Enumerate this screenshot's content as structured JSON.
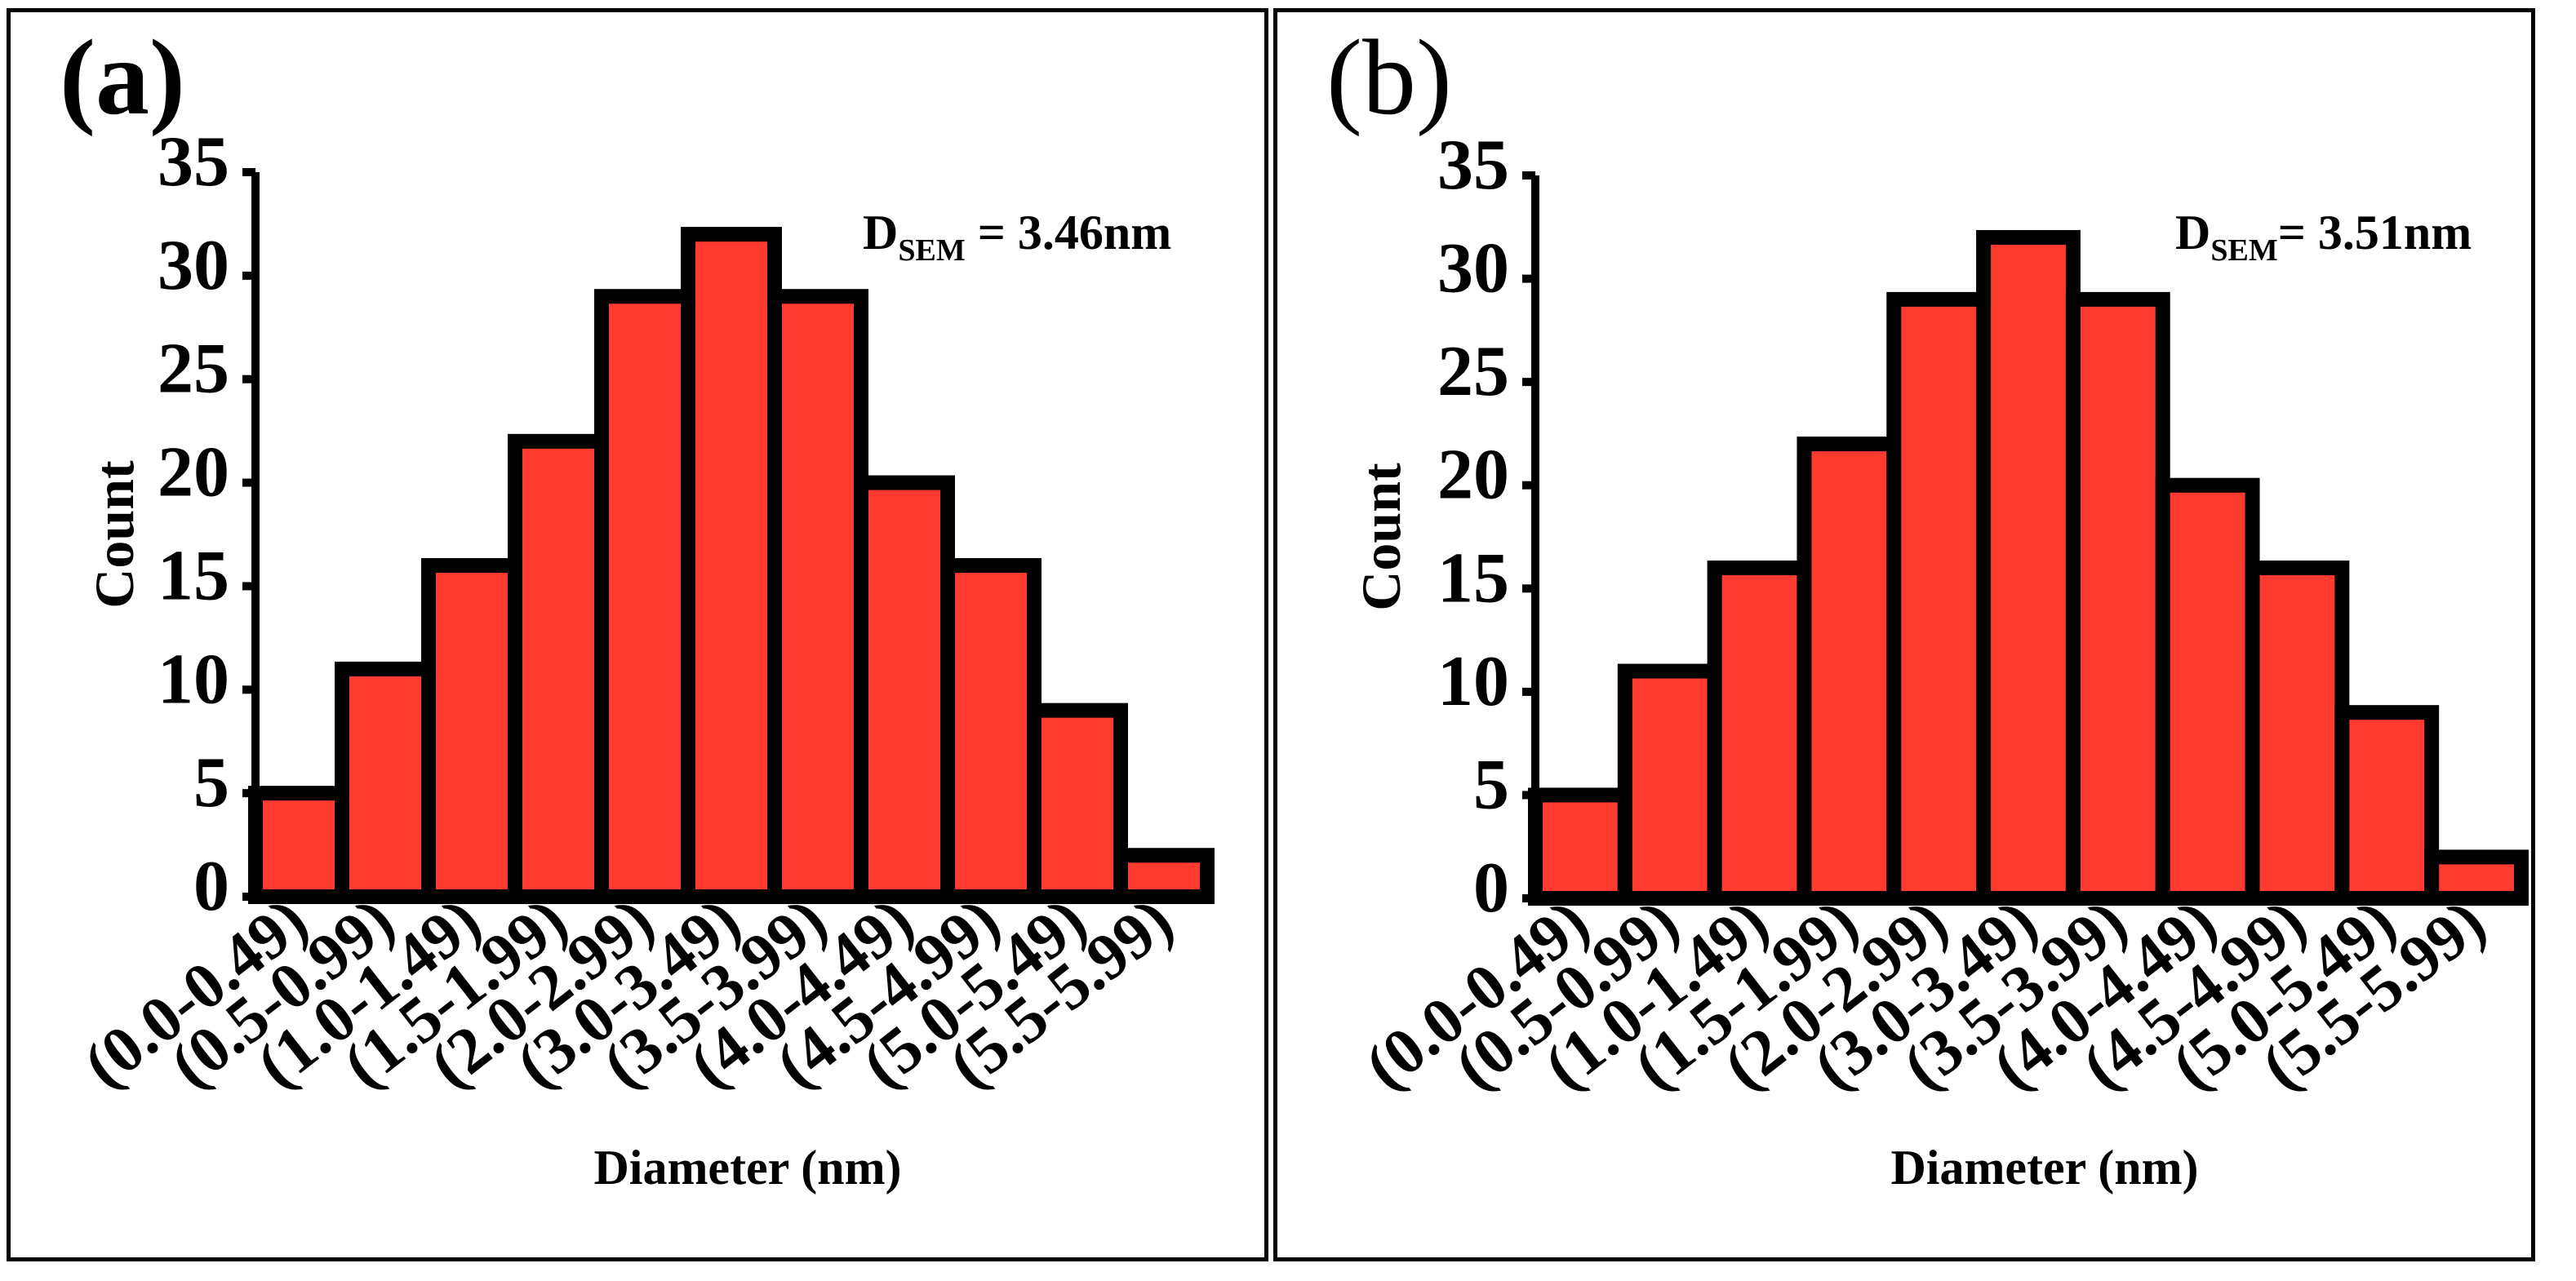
{
  "chart_data": [
    {
      "type": "bar",
      "panel_label": "(a)",
      "annotation": {
        "main": "D",
        "subscript": "SEM",
        "rest": " = 3.46nm"
      },
      "categories": [
        "(0.0-0.49)",
        "(0.5-0.99)",
        "(1.0-1.49)",
        "(1.5-1.99)",
        "(2.0-2.99)",
        "(3.0-3.49)",
        "(3.5-3.99)",
        "(4.0-4.49)",
        "(4.5-4.99)",
        "(5.0-5.49)",
        "(5.5-5.99)"
      ],
      "values": [
        5,
        11,
        16,
        22,
        29,
        32,
        29,
        20,
        16,
        9,
        2
      ],
      "xlabel": "Diameter (nm)",
      "ylabel": "Count",
      "ylim": [
        0,
        35
      ],
      "yticks": [
        0,
        5,
        10,
        15,
        20,
        25,
        30,
        35
      ],
      "grid": false,
      "bar_color": "#ff3b30"
    },
    {
      "type": "bar",
      "panel_label": "(b)",
      "annotation": {
        "main": "D",
        "subscript": "SEM",
        "rest": "= 3.51nm"
      },
      "categories": [
        "(0.0-0.49)",
        "(0.5-0.99)",
        "(1.0-1.49)",
        "(1.5-1.99)",
        "(2.0-2.99)",
        "(3.0-3.49)",
        "(3.5-3.99)",
        "(4.0-4.49)",
        "(4.5-4.99)",
        "(5.0-5.49)",
        "(5.5-5.99)"
      ],
      "values": [
        5,
        11,
        16,
        22,
        29,
        32,
        29,
        20,
        16,
        9,
        2
      ],
      "xlabel": "Diameter (nm)",
      "ylabel": "Count",
      "ylim": [
        0,
        35
      ],
      "yticks": [
        0,
        5,
        10,
        15,
        20,
        25,
        30,
        35
      ],
      "grid": false,
      "bar_color": "#ff3b30"
    }
  ]
}
